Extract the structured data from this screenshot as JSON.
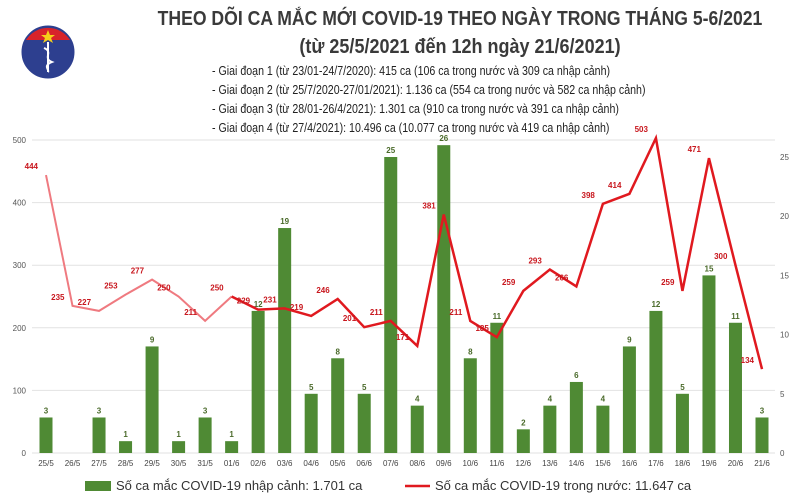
{
  "header": {
    "title": "THEO DÕI CA MẮC MỚI COVID-19 THEO NGÀY TRONG THÁNG 5-6/2021",
    "subtitle": "(từ 25/5/2021 đến 12h ngày 21/6/2021)",
    "notes": [
      "- Giai đoạn 1 (từ 23/01-24/7/2020): 415 ca (106 ca trong nước và 309 ca nhập cảnh)",
      "- Giai đoạn 2 (từ 25/7/2020-27/01/2021): 1.136 ca (554 ca trong nước và 582 ca nhập cảnh)",
      "- Giai đoạn 3 (từ 28/01-26/4/2021): 1.301 ca (910 ca trong nước và 391 ca nhập cảnh)",
      "- Giai đoạn 4 (từ 27/4/2021): 10.496 ca (10.077 ca trong nước và 419 ca nhập cảnh)"
    ],
    "logo_text": "BỘ Y TẾ MINISTRY OF HEALTH"
  },
  "chart_data": {
    "type": "bar+line",
    "categories": [
      "25/5",
      "26/5",
      "27/5",
      "28/5",
      "29/5",
      "30/5",
      "31/5",
      "01/6",
      "02/6",
      "03/6",
      "04/6",
      "05/6",
      "06/6",
      "07/6",
      "08/6",
      "09/6",
      "10/6",
      "11/6",
      "12/6",
      "13/6",
      "14/6",
      "15/6",
      "16/6",
      "17/6",
      "18/6",
      "19/6",
      "20/6",
      "21/6"
    ],
    "series": [
      {
        "name": "Số ca mắc COVID-19 nhập cảnh: 1.701 ca",
        "type": "bar",
        "axis": "right",
        "color": "#4f8a34",
        "values": [
          3,
          0,
          3,
          1,
          9,
          1,
          3,
          1,
          12,
          19,
          5,
          8,
          5,
          25,
          4,
          26,
          8,
          11,
          2,
          4,
          6,
          4,
          9,
          12,
          5,
          15,
          11,
          3
        ]
      },
      {
        "name": "Số ca mắc COVID-19 trong nước: 11.647 ca",
        "type": "line",
        "axis": "left",
        "color": "#e0191f",
        "values": [
          444,
          235,
          227,
          253,
          277,
          250,
          211,
          250,
          229,
          231,
          219,
          246,
          201,
          211,
          171,
          381,
          211,
          185,
          259,
          293,
          266,
          398,
          414,
          503,
          259,
          471,
          300,
          134
        ]
      }
    ],
    "left_axis": {
      "range": [
        0,
        500
      ],
      "ticks": [
        "0",
        "100",
        "200",
        "300",
        "400",
        "500"
      ]
    },
    "right_axis": {
      "range": [
        0,
        26.4
      ],
      "ticks": [
        "0",
        "5",
        "10",
        "15",
        "20",
        "25"
      ]
    },
    "grid": true,
    "legend": "bottom"
  }
}
